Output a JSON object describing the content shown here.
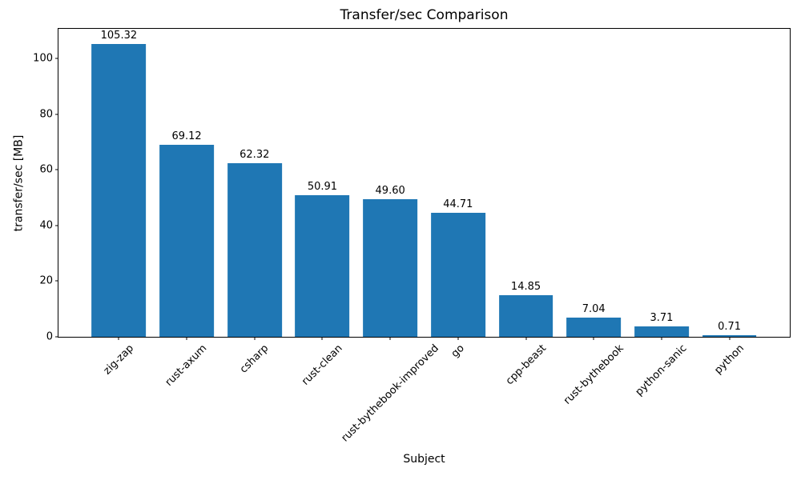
{
  "figure": {
    "background": "#ffffff"
  },
  "chart_data": {
    "type": "bar",
    "title": "Transfer/sec Comparison",
    "xlabel": "Subject",
    "ylabel": "transfer/sec [MB]",
    "categories": [
      "zig-zap",
      "rust-axum",
      "csharp",
      "rust-clean",
      "rust-bythebook-improved",
      "go",
      "cpp-beast",
      "rust-bythebook",
      "python-sanic",
      "python"
    ],
    "values": [
      105.32,
      69.12,
      62.32,
      50.91,
      49.6,
      44.71,
      14.85,
      7.04,
      3.71,
      0.71
    ],
    "bar_value_labels": [
      "105.32",
      "69.12",
      "62.32",
      "50.91",
      "49.60",
      "44.71",
      "14.85",
      "7.04",
      "3.71",
      "0.71"
    ],
    "bar_color": "#1f77b4",
    "axis_color": "#000000",
    "text_color": "#000000",
    "ylim": [
      0,
      110.7
    ],
    "yticks": [
      0,
      20,
      40,
      60,
      80,
      100
    ],
    "xtick_rotation_deg": 45,
    "bar_width_fraction": 0.8,
    "x_margin_fraction": 0.05,
    "grid": false,
    "legend": null
  }
}
